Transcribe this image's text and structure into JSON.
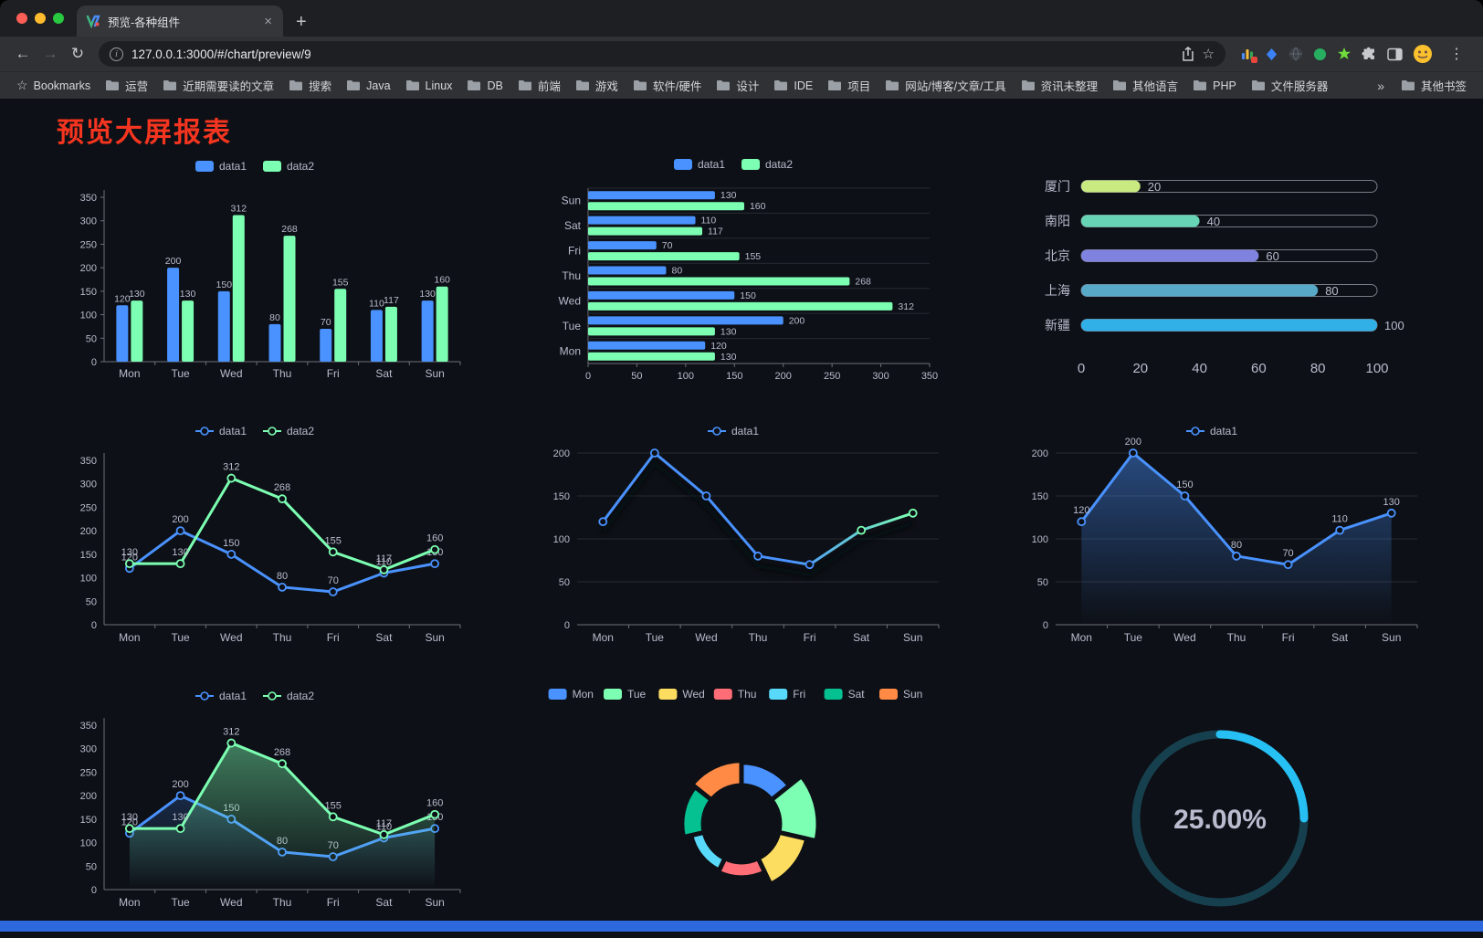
{
  "window": {
    "tab_title": "预览-各种组件",
    "url": "127.0.0.1:3000/#/chart/preview/9"
  },
  "icons": {
    "close": "×",
    "new_tab": "+",
    "back": "←",
    "forward": "→",
    "reload": "↻",
    "star": "☆",
    "menu": "⋮",
    "info": "i"
  },
  "bookmarks": {
    "label": "Bookmarks",
    "items": [
      "运营",
      "近期需要读的文章",
      "搜索",
      "Java",
      "Linux",
      "DB",
      "前端",
      "游戏",
      "软件/硬件",
      "设计",
      "IDE",
      "项目",
      "网站/博客/文章/工具",
      "资讯未整理",
      "其他语言",
      "PHP",
      "文件服务器"
    ],
    "overflow": "»",
    "other": "其他书签"
  },
  "page": {
    "title": "预览大屏报表",
    "title_color": "#f5351f",
    "background": "#0d1016",
    "bottom_bar_color": "#2d68dd"
  },
  "chart_data": [
    {
      "id": "bar-grouped",
      "type": "bar",
      "render": "vbar",
      "categories": [
        "Mon",
        "Tue",
        "Wed",
        "Thu",
        "Fri",
        "Sat",
        "Sun"
      ],
      "series": [
        {
          "name": "data1",
          "color": "#4992ff",
          "values": [
            120,
            200,
            150,
            80,
            70,
            110,
            130
          ]
        },
        {
          "name": "data2",
          "color": "#7cffb2",
          "values": [
            130,
            130,
            312,
            268,
            155,
            117,
            160
          ]
        }
      ],
      "ylim": [
        0,
        350
      ],
      "ytick": 50,
      "legend_position": "top"
    },
    {
      "id": "bar-horizontal",
      "type": "bar",
      "render": "hbar",
      "categories": [
        "Mon",
        "Tue",
        "Wed",
        "Thu",
        "Fri",
        "Sat",
        "Sun"
      ],
      "series": [
        {
          "name": "data1",
          "color": "#4992ff",
          "values": [
            120,
            200,
            150,
            80,
            70,
            110,
            130
          ]
        },
        {
          "name": "data2",
          "color": "#7cffb2",
          "values": [
            130,
            130,
            312,
            268,
            155,
            117,
            160
          ]
        }
      ],
      "xlim": [
        0,
        350
      ],
      "xtick": 50,
      "legend_position": "top"
    },
    {
      "id": "capsule-progress",
      "type": "bar",
      "render": "capsule",
      "items": [
        {
          "name": "厦门",
          "value": 20,
          "color": "#c9e981"
        },
        {
          "name": "南阳",
          "value": 40,
          "color": "#67d5b5"
        },
        {
          "name": "北京",
          "value": 60,
          "color": "#8082e0"
        },
        {
          "name": "上海",
          "value": 80,
          "color": "#58a8c8"
        },
        {
          "name": "新疆",
          "value": 100,
          "color": "#31b0e8"
        }
      ],
      "xlim": [
        0,
        100
      ],
      "ticks": [
        0,
        20,
        40,
        60,
        80,
        100
      ]
    },
    {
      "id": "line-two-series",
      "type": "line",
      "render": "line",
      "categories": [
        "Mon",
        "Tue",
        "Wed",
        "Thu",
        "Fri",
        "Sat",
        "Sun"
      ],
      "series": [
        {
          "name": "data1",
          "color": "#4992ff",
          "values": [
            120,
            200,
            150,
            80,
            70,
            110,
            130
          ]
        },
        {
          "name": "data2",
          "color": "#7cffb2",
          "values": [
            130,
            130,
            312,
            268,
            155,
            117,
            160
          ]
        }
      ],
      "ylim": [
        0,
        350
      ],
      "ytick": 50,
      "labels": true,
      "left_axis": true,
      "legend_position": "top"
    },
    {
      "id": "line-gradient",
      "type": "line",
      "render": "line",
      "categories": [
        "Mon",
        "Tue",
        "Wed",
        "Thu",
        "Fri",
        "Sat",
        "Sun"
      ],
      "series": [
        {
          "name": "data1",
          "gradient": [
            "#4992ff",
            "#7cffb2"
          ],
          "values": [
            120,
            200,
            150,
            80,
            70,
            110,
            130
          ]
        }
      ],
      "ylim": [
        0,
        200
      ],
      "ytick": 50,
      "grid": true,
      "shadow": true,
      "legend_position": "top"
    },
    {
      "id": "area-single",
      "type": "area",
      "render": "line",
      "categories": [
        "Mon",
        "Tue",
        "Wed",
        "Thu",
        "Fri",
        "Sat",
        "Sun"
      ],
      "series": [
        {
          "name": "data1",
          "color": "#4992ff",
          "values": [
            120,
            200,
            150,
            80,
            70,
            110,
            130
          ],
          "area_opacity": 0.45
        }
      ],
      "ylim": [
        0,
        200
      ],
      "ytick": 50,
      "grid": true,
      "labels": true,
      "legend_position": "top"
    },
    {
      "id": "line-area-two",
      "type": "area",
      "render": "line",
      "categories": [
        "Mon",
        "Tue",
        "Wed",
        "Thu",
        "Fri",
        "Sat",
        "Sun"
      ],
      "series": [
        {
          "name": "data1",
          "color": "#4992ff",
          "values": [
            120,
            200,
            150,
            80,
            70,
            110,
            130
          ],
          "area_opacity": 0.2
        },
        {
          "name": "data2",
          "color": "#7cffb2",
          "values": [
            130,
            130,
            312,
            268,
            155,
            117,
            160
          ],
          "area_opacity": 0.45
        }
      ],
      "ylim": [
        0,
        350
      ],
      "ytick": 50,
      "labels": true,
      "left_axis": true,
      "legend_position": "top"
    },
    {
      "id": "pie-rose",
      "type": "pie",
      "render": "rose",
      "items": [
        {
          "name": "Mon",
          "value": 120,
          "color": "#4992ff"
        },
        {
          "name": "Tue",
          "value": 200,
          "color": "#7cffb2"
        },
        {
          "name": "Wed",
          "value": 150,
          "color": "#fddd60"
        },
        {
          "name": "Thu",
          "value": 80,
          "color": "#ff6e76"
        },
        {
          "name": "Fri",
          "value": 70,
          "color": "#58d9f9"
        },
        {
          "name": "Sat",
          "value": 110,
          "color": "#05c091"
        },
        {
          "name": "Sun",
          "value": 130,
          "color": "#ff8a45"
        }
      ],
      "legend_position": "top"
    },
    {
      "id": "gauge-progress",
      "type": "pie",
      "render": "gauge",
      "value": 25,
      "label": "25.00%",
      "color": "#27c0f5",
      "track_color": "#17404f"
    }
  ]
}
